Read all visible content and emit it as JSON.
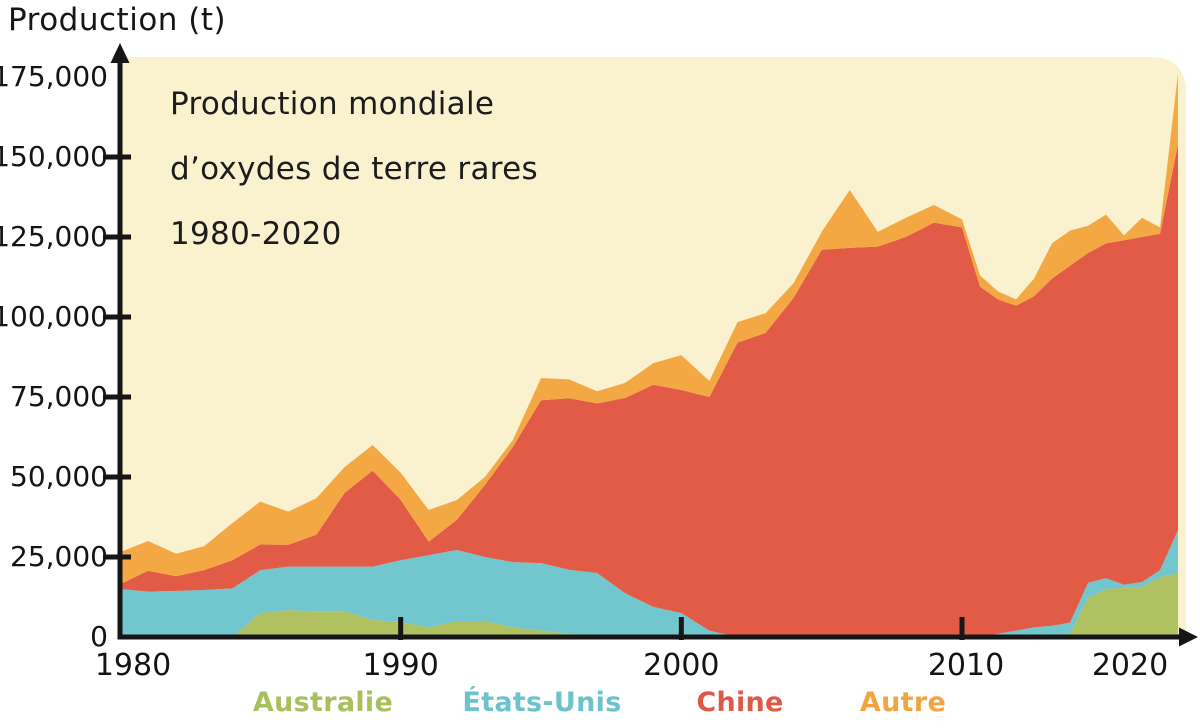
{
  "chart_data": {
    "type": "area",
    "stacked": true,
    "title_lines": [
      "Production mondiale",
      "d’oxydes de terre rares",
      "1980-2020"
    ],
    "y_axis_title": "Production (t)",
    "x_label": "",
    "ylabel": "Production (t)",
    "ylim": [
      0,
      175000
    ],
    "xlim": [
      1980,
      2022
    ],
    "grid": false,
    "legend_position": "bottom",
    "plot_background": "#FAF2CF",
    "axis_color": "#161616",
    "x": [
      1980,
      1981,
      1982,
      1983,
      1984,
      1985,
      1986,
      1987,
      1988,
      1989,
      1990,
      1991,
      1992,
      1993,
      1994,
      1995,
      1996,
      1997,
      1998,
      1999,
      2000,
      2001,
      2002,
      2003,
      2004,
      2005,
      2006,
      2007,
      2008,
      2009,
      2010,
      2011,
      2012,
      2013,
      2014,
      2015,
      2016,
      2017,
      2018,
      2019,
      2020,
      2021,
      2022
    ],
    "series": [
      {
        "name": "Australie",
        "color": "#AFC161",
        "values": [
          0,
          0,
          0,
          0,
          0,
          7500,
          8400,
          8000,
          8000,
          5300,
          4700,
          3000,
          5000,
          5000,
          3000,
          2000,
          1000,
          0,
          0,
          0,
          0,
          0,
          0,
          0,
          0,
          0,
          0,
          0,
          0,
          0,
          0,
          0,
          0,
          0,
          0,
          0,
          1000,
          12200,
          15000,
          15300,
          15600,
          18700,
          20000
        ]
      },
      {
        "name": "États-Unis",
        "color": "#72C6CE",
        "values": [
          15000,
          14200,
          14400,
          14700,
          15200,
          13400,
          13600,
          14000,
          14000,
          16700,
          19300,
          22600,
          22200,
          20000,
          20400,
          21100,
          20000,
          20000,
          13700,
          9400,
          7500,
          2000,
          0,
          0,
          0,
          0,
          0,
          0,
          0,
          0,
          0,
          0,
          1000,
          2000,
          3000,
          3500,
          3500,
          4700,
          3400,
          1000,
          1600,
          2200,
          13400
        ]
      },
      {
        "name": "Chine",
        "color": "#E15B47",
        "values": [
          1500,
          6500,
          4600,
          6200,
          8800,
          8000,
          6800,
          10000,
          23000,
          30000,
          18800,
          4200,
          9400,
          22500,
          36000,
          50900,
          53600,
          53000,
          61000,
          69400,
          69700,
          73000,
          92000,
          95000,
          106000,
          121000,
          121600,
          122000,
          125000,
          129500,
          128000,
          109500,
          104500,
          101500,
          103500,
          108500,
          111500,
          103100,
          104600,
          107700,
          107800,
          105100,
          120600
        ]
      },
      {
        "name": "Autre",
        "color": "#F4A843",
        "values": [
          10000,
          9300,
          7000,
          7500,
          11600,
          13400,
          10400,
          11400,
          8100,
          8000,
          8500,
          9900,
          6200,
          2500,
          2200,
          6900,
          5900,
          3800,
          4700,
          6800,
          10900,
          5000,
          6400,
          6200,
          4600,
          5600,
          18100,
          4600,
          6000,
          5500,
          2500,
          3500,
          2500,
          2000,
          5500,
          11000,
          11000,
          8500,
          9000,
          1500,
          6000,
          2000,
          22000
        ]
      }
    ],
    "y_ticks": [
      0,
      25000,
      50000,
      75000,
      100000,
      125000,
      150000,
      175000
    ],
    "y_tick_labels": [
      "0",
      "25,000",
      "50,000",
      "75,000",
      "100,000",
      "125,000",
      "150,000",
      "175,000"
    ],
    "x_ticks": [
      1980,
      1990,
      2000,
      2010,
      2020
    ],
    "x_tick_labels": [
      "1980",
      "1990",
      "2000",
      "2010",
      "2020"
    ]
  },
  "legend": {
    "items": [
      {
        "label": "Australie",
        "color": "#A9BF5C"
      },
      {
        "label": "États-Unis",
        "color": "#6CC3CC"
      },
      {
        "label": "Chine",
        "color": "#DD5A46"
      },
      {
        "label": "Autre",
        "color": "#F2A53E"
      }
    ]
  }
}
